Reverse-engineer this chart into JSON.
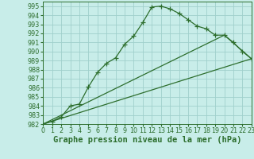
{
  "title": "Graphe pression niveau de la mer (hPa)",
  "bg_color": "#c8ede9",
  "grid_color": "#a0d0cc",
  "line_color": "#2d6e2d",
  "spine_color": "#2d6e2d",
  "xlim": [
    0,
    23
  ],
  "ylim": [
    982,
    995.5
  ],
  "yticks": [
    982,
    983,
    984,
    985,
    986,
    987,
    988,
    989,
    990,
    991,
    992,
    993,
    994,
    995
  ],
  "xticks": [
    0,
    1,
    2,
    3,
    4,
    5,
    6,
    7,
    8,
    9,
    10,
    11,
    12,
    13,
    14,
    15,
    16,
    17,
    18,
    19,
    20,
    21,
    22,
    23
  ],
  "series": [
    {
      "x": [
        0,
        1,
        2,
        3,
        4,
        5,
        6,
        7,
        8,
        9,
        10,
        11,
        12,
        13,
        14,
        15,
        16,
        17,
        18,
        19,
        20,
        21,
        22,
        23
      ],
      "y": [
        982.0,
        982.3,
        982.8,
        984.0,
        984.2,
        986.1,
        987.7,
        988.7,
        989.3,
        990.8,
        991.7,
        993.2,
        994.9,
        995.0,
        994.7,
        994.2,
        993.5,
        992.8,
        992.5,
        991.8,
        991.8,
        991.0,
        990.0,
        989.2
      ],
      "has_markers": true
    },
    {
      "x": [
        0,
        23
      ],
      "y": [
        982.0,
        989.2
      ],
      "has_markers": false
    },
    {
      "x": [
        0,
        20,
        23
      ],
      "y": [
        982.0,
        991.8,
        989.2
      ],
      "has_markers": false
    }
  ],
  "marker": "+",
  "marker_size": 4,
  "marker_lw": 0.9,
  "linewidth": 0.9,
  "title_fontsize": 7.5,
  "tick_fontsize": 5.8,
  "title_fontweight": "bold"
}
